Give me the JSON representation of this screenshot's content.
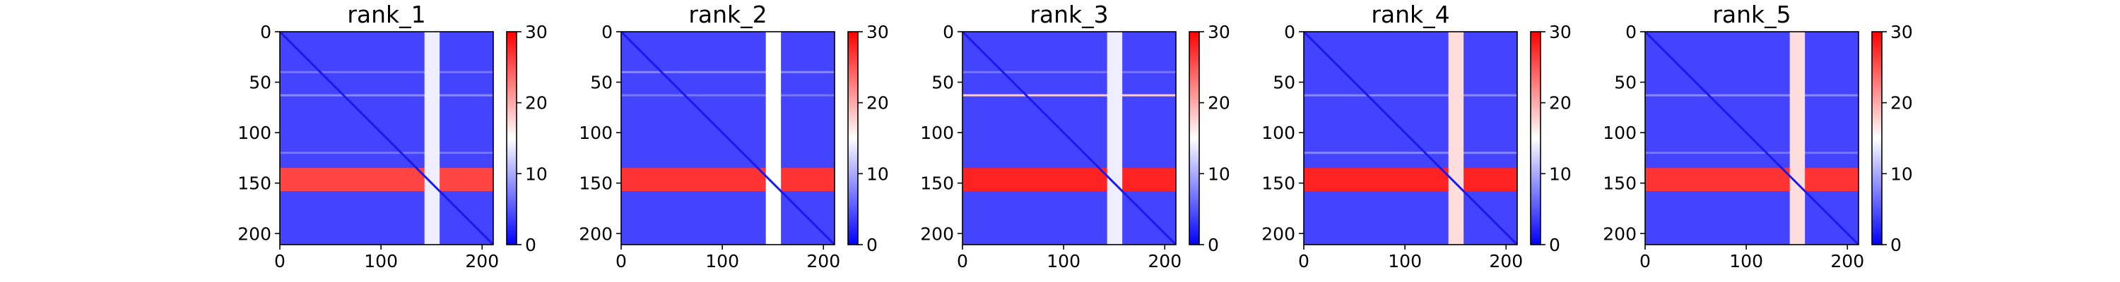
{
  "chart_data": {
    "type": "heatmap",
    "colormap": {
      "name": "bwr",
      "colors": [
        "#0000ff",
        "#ffffff",
        "#ff0000"
      ]
    },
    "color_range": [
      0,
      30
    ],
    "colorbar_ticks": [
      "0",
      "10",
      "20",
      "30"
    ],
    "x_range": [
      0,
      211
    ],
    "y_range": [
      0,
      211
    ],
    "y_inverted": true,
    "x_ticks": [
      "0",
      "100",
      "200"
    ],
    "y_ticks": [
      "0",
      "50",
      "100",
      "150",
      "200"
    ],
    "grid": false,
    "panels": [
      {
        "title": "rank_1",
        "base_value": 4,
        "bands": [
          {
            "axis": "row",
            "from": 135,
            "to": 158,
            "value": 26
          },
          {
            "axis": "col",
            "from": 143,
            "to": 158,
            "value": 14
          }
        ],
        "lines": [
          {
            "axis": "row",
            "at": 40,
            "value": 7
          },
          {
            "axis": "row",
            "at": 63,
            "value": 8
          },
          {
            "axis": "row",
            "at": 120,
            "value": 7
          }
        ]
      },
      {
        "title": "rank_2",
        "base_value": 4,
        "bands": [
          {
            "axis": "row",
            "from": 135,
            "to": 158,
            "value": 27
          },
          {
            "axis": "col",
            "from": 143,
            "to": 158,
            "value": 15
          }
        ],
        "lines": [
          {
            "axis": "row",
            "at": 40,
            "value": 8
          },
          {
            "axis": "row",
            "at": 63,
            "value": 7
          }
        ]
      },
      {
        "title": "rank_3",
        "base_value": 4,
        "bands": [
          {
            "axis": "row",
            "from": 135,
            "to": 158,
            "value": 28
          },
          {
            "axis": "col",
            "from": 143,
            "to": 158,
            "value": 14
          }
        ],
        "lines": [
          {
            "axis": "row",
            "at": 63,
            "value": 18
          },
          {
            "axis": "row",
            "at": 40,
            "value": 7
          }
        ]
      },
      {
        "title": "rank_4",
        "base_value": 4,
        "bands": [
          {
            "axis": "row",
            "from": 135,
            "to": 158,
            "value": 28
          },
          {
            "axis": "col",
            "from": 143,
            "to": 158,
            "value": 17
          }
        ],
        "lines": [
          {
            "axis": "row",
            "at": 63,
            "value": 8
          },
          {
            "axis": "row",
            "at": 120,
            "value": 8
          }
        ]
      },
      {
        "title": "rank_5",
        "base_value": 4,
        "bands": [
          {
            "axis": "row",
            "from": 135,
            "to": 158,
            "value": 27
          },
          {
            "axis": "col",
            "from": 143,
            "to": 158,
            "value": 17
          }
        ],
        "lines": [
          {
            "axis": "row",
            "at": 63,
            "value": 8
          },
          {
            "axis": "row",
            "at": 120,
            "value": 7
          }
        ]
      }
    ]
  }
}
